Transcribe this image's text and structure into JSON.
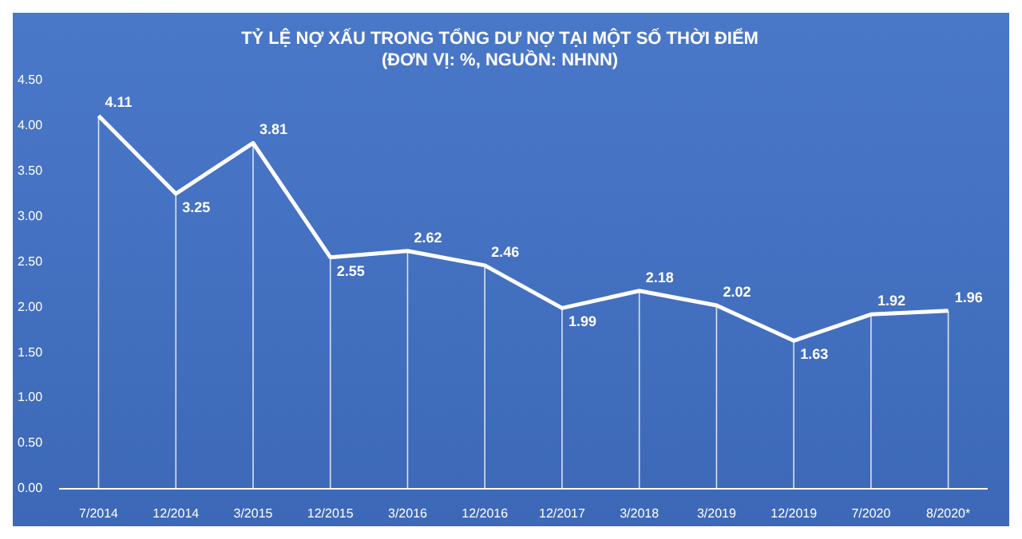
{
  "chart_data": {
    "type": "line",
    "title": "TỶ LỆ NỢ XẤU TRONG TỔNG DƯ NỢ TẠI MỘT SỐ THỜI ĐIỂM",
    "subtitle": "(ĐƠN VỊ: %, NGUỒN: NHNN)",
    "categories": [
      "7/2014",
      "12/2014",
      "3/2015",
      "12/2015",
      "3/2016",
      "12/2016",
      "12/2017",
      "3/2018",
      "3/2019",
      "12/2019",
      "7/2020",
      "8/2020*"
    ],
    "series": [
      {
        "color": "#ffffff",
        "values": [
          4.11,
          3.25,
          3.81,
          2.55,
          2.62,
          2.46,
          1.99,
          2.18,
          2.02,
          1.63,
          1.92,
          1.96
        ]
      }
    ],
    "ylim": [
      0,
      4.5
    ],
    "yticks": [
      {
        "value": 0,
        "label": "0.00"
      },
      {
        "value": 0.5,
        "label": "0.50"
      },
      {
        "value": 1,
        "label": "1.00"
      },
      {
        "value": 1.5,
        "label": "1.50"
      },
      {
        "value": 2,
        "label": "2.00"
      },
      {
        "value": 2.5,
        "label": "2.50"
      },
      {
        "value": 3,
        "label": "3.00"
      },
      {
        "value": 3.5,
        "label": "3.50"
      },
      {
        "value": 4,
        "label": "4.00"
      },
      {
        "value": 4.5,
        "label": "4.50"
      }
    ],
    "data_labels": true,
    "grid": "x",
    "marker": "none",
    "line_style": "solid"
  }
}
